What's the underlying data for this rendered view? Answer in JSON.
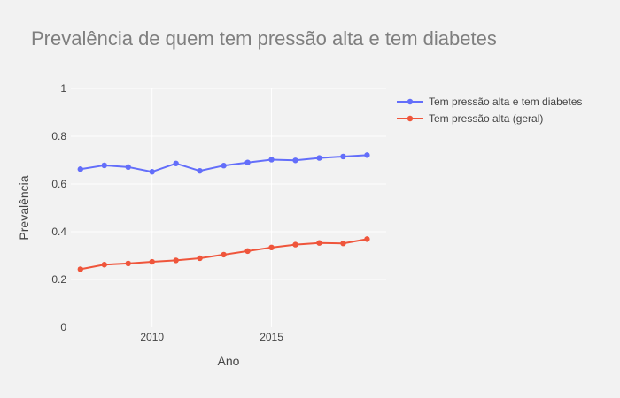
{
  "chart_data": {
    "type": "line",
    "title": "Prevalência de quem tem pressão alta e tem diabetes",
    "xlabel": "Ano",
    "ylabel": "Prevalência",
    "xlim": [
      2006.6,
      2019.8
    ],
    "ylim": [
      0,
      1
    ],
    "x_ticks": [
      2010,
      2015
    ],
    "x_tick_labels": [
      "2010",
      "2015"
    ],
    "y_ticks": [
      0,
      0.2,
      0.4,
      0.6,
      0.8,
      1
    ],
    "y_tick_labels": [
      "0",
      "0.2",
      "0.4",
      "0.6",
      "0.8",
      "1"
    ],
    "grid": true,
    "legend_position": "top-right (outside plot)",
    "x": [
      2007,
      2008,
      2009,
      2010,
      2011,
      2012,
      2013,
      2014,
      2015,
      2016,
      2017,
      2018,
      2019
    ],
    "series": [
      {
        "name": "Tem pressão alta e tem diabetes",
        "color": "#636efa",
        "values": [
          0.662,
          0.678,
          0.671,
          0.651,
          0.686,
          0.655,
          0.677,
          0.69,
          0.702,
          0.699,
          0.709,
          0.715,
          0.721
        ]
      },
      {
        "name": "Tem pressão alta (geral)",
        "color": "#ef553b",
        "values": [
          0.243,
          0.262,
          0.267,
          0.274,
          0.28,
          0.289,
          0.304,
          0.319,
          0.334,
          0.346,
          0.353,
          0.351,
          0.369
        ]
      }
    ]
  }
}
